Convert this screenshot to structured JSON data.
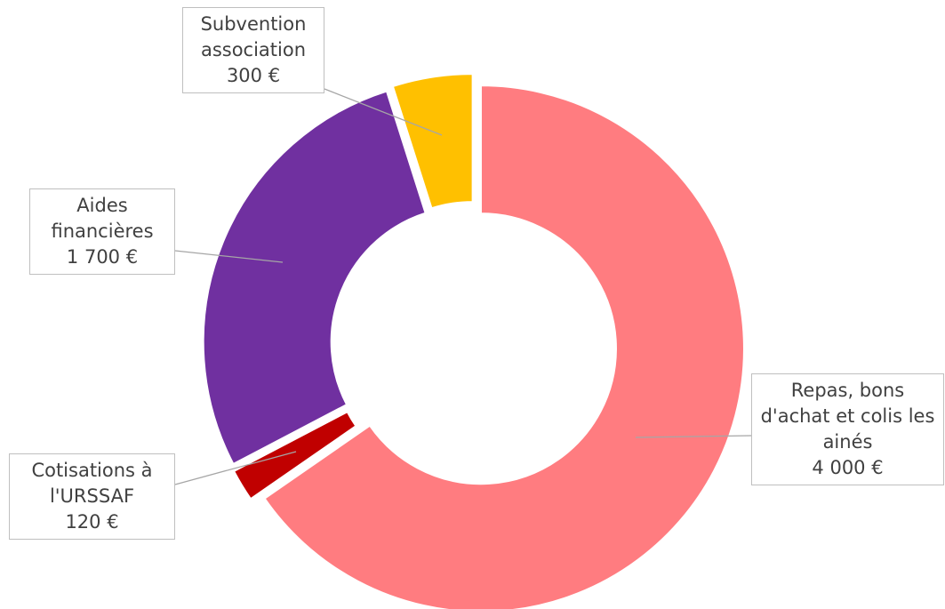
{
  "chart_data": {
    "type": "donut",
    "categories": [
      "Repas, bons d'achat et colis les ainés",
      "Cotisations à l'URSSAF",
      "Aides financières",
      "Subvention association"
    ],
    "values": [
      4000,
      120,
      1700,
      300
    ],
    "value_labels": [
      "4 000 €",
      "120 €",
      "1 700 €",
      "300 €"
    ],
    "colors": [
      "#ff7c80",
      "#c00000",
      "#7030a0",
      "#ffc000"
    ]
  }
}
